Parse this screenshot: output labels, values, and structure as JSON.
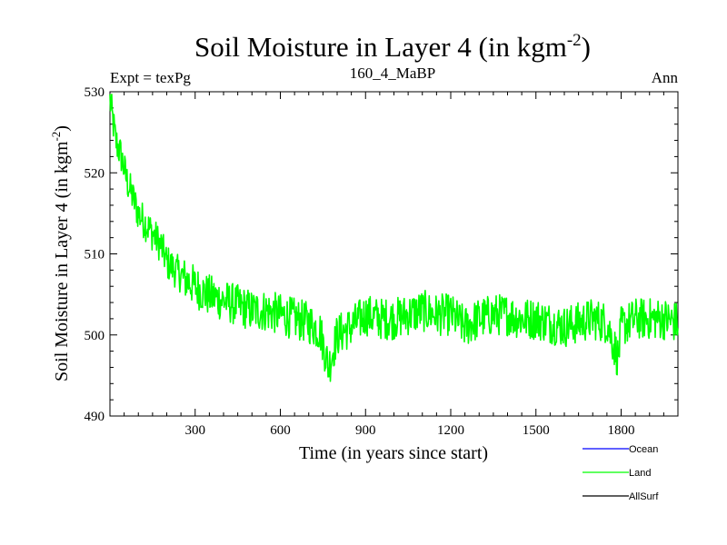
{
  "chart_data": {
    "type": "line",
    "title": "Soil Moisture in Layer 4 (in kgm",
    "title_sup": "-2",
    "title_close": ")",
    "subtitle_left": "Expt = texPg",
    "subtitle_center": "160_4_MaBP",
    "subtitle_right": "Ann",
    "xlabel": "Time (in years since start)",
    "ylabel": "Soil Moisture in Layer 4 (in kgm",
    "ylabel_sup": "-2",
    "ylabel_close": ")",
    "xlim": [
      0,
      2000
    ],
    "ylim": [
      490,
      530
    ],
    "xticks": [
      300,
      600,
      900,
      1200,
      1500,
      1800
    ],
    "yticks": [
      490,
      500,
      510,
      520,
      530
    ],
    "series": [
      {
        "name": "Ocean",
        "color": "#0000ff",
        "x": [],
        "y": []
      },
      {
        "name": "Land",
        "color": "#00ff00",
        "x": [
          0,
          20,
          40,
          60,
          80,
          100,
          120,
          140,
          160,
          180,
          200,
          230,
          260,
          300,
          340,
          380,
          420,
          460,
          500,
          550,
          600,
          650,
          700,
          740,
          770,
          800,
          850,
          900,
          950,
          1000,
          1050,
          1100,
          1150,
          1200,
          1250,
          1300,
          1350,
          1400,
          1450,
          1500,
          1550,
          1600,
          1650,
          1700,
          1750,
          1790,
          1800,
          1850,
          1900,
          1950,
          2000
        ],
        "y": [
          529,
          524,
          522,
          519,
          517,
          515,
          514,
          513,
          512,
          511,
          509,
          508,
          507,
          506,
          505,
          504.5,
          504,
          503.5,
          503,
          503,
          502.5,
          502,
          501.5,
          500.5,
          496,
          500,
          501,
          502.5,
          502,
          502,
          502.5,
          503,
          502.5,
          502.5,
          501,
          502,
          502.5,
          502.5,
          502,
          502,
          501.5,
          501,
          501.5,
          502,
          501.5,
          497,
          501,
          502,
          502,
          502,
          501.5
        ]
      },
      {
        "name": "AllSurf",
        "color": "#000000",
        "x": [],
        "y": []
      }
    ],
    "legend_position": "bottom-right"
  }
}
